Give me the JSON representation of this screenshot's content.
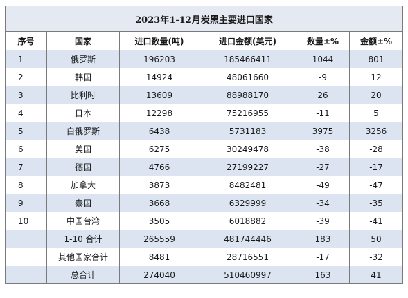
{
  "table": {
    "title": "2023年1-12月炭黑主要进口国家",
    "headers": [
      "序号",
      "国家",
      "进口数量(吨)",
      "进口金额(美元)",
      "数量±%",
      "金额±%"
    ],
    "rows": [
      [
        "1",
        "俄罗斯",
        "196203",
        "185466411",
        "1044",
        "801"
      ],
      [
        "2",
        "韩国",
        "14924",
        "48061660",
        "-9",
        "12"
      ],
      [
        "3",
        "比利时",
        "13609",
        "88988170",
        "26",
        "20"
      ],
      [
        "4",
        "日本",
        "12298",
        "75216955",
        "-11",
        "5"
      ],
      [
        "5",
        "白俄罗斯",
        "6438",
        "5731183",
        "3975",
        "3256"
      ],
      [
        "6",
        "美国",
        "6275",
        "30249478",
        "-38",
        "-28"
      ],
      [
        "7",
        "德国",
        "4766",
        "27199227",
        "-27",
        "-17"
      ],
      [
        "8",
        "加拿大",
        "3873",
        "8482481",
        "-49",
        "-47"
      ],
      [
        "9",
        "泰国",
        "3668",
        "6329999",
        "-34",
        "-35"
      ],
      [
        "10",
        "中国台湾",
        "3505",
        "6018882",
        "-39",
        "-41"
      ],
      [
        "",
        "1-10 合计",
        "265559",
        "481744446",
        "183",
        "50"
      ],
      [
        "",
        "其他国家合计",
        "8481",
        "28716551",
        "-17",
        "-32"
      ],
      [
        "",
        "总合计",
        "274040",
        "510460997",
        "163",
        "41"
      ]
    ]
  },
  "colors": {
    "title_bg": "#e4e9f2",
    "shaded_row_bg": "#dbe4f0",
    "border": "#7a7a7a"
  }
}
